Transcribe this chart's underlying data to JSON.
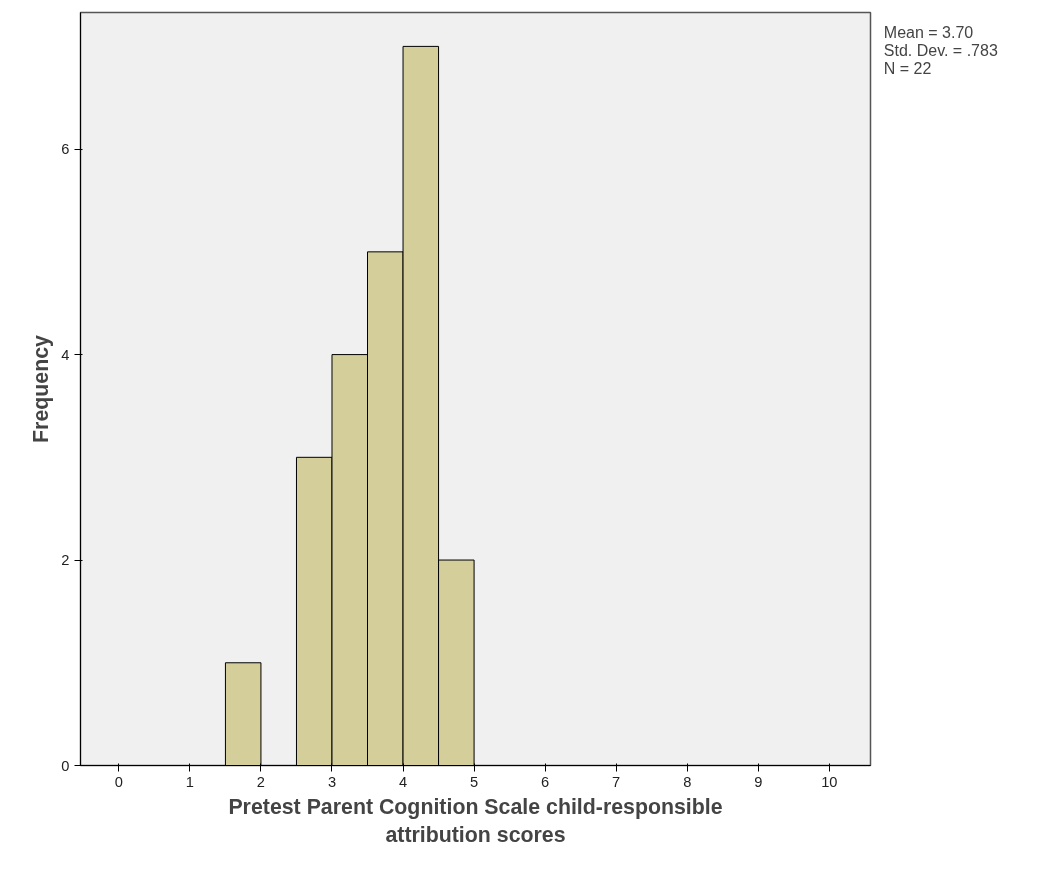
{
  "chart_data": {
    "type": "histogram",
    "xlabel": "Pretest Parent Cognition Scale child-responsible\nattribution scores",
    "ylabel": "Frequency",
    "bins": [
      1.5,
      2,
      2.5,
      3,
      3.5,
      4,
      4.5,
      5
    ],
    "values": [
      1,
      0,
      3,
      4,
      5,
      7,
      2
    ],
    "color": "#d3ce9a",
    "xlim": [
      -0.54,
      10.58
    ],
    "ylim": [
      0,
      7.33
    ],
    "xticks": [
      0,
      1,
      2,
      3,
      4,
      5,
      6,
      7,
      8,
      9,
      10
    ],
    "yticks": [
      0,
      2,
      4,
      6
    ],
    "grid": false,
    "annotations": [
      "Mean = 3.70",
      "Std. Dev. = .783",
      "N = 22"
    ]
  }
}
